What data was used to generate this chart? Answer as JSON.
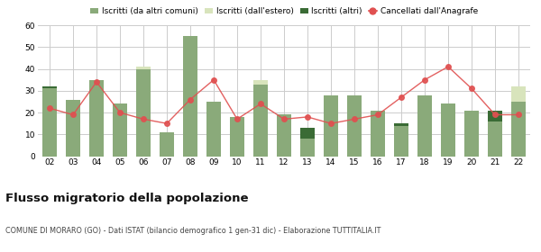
{
  "years": [
    "02",
    "03",
    "04",
    "05",
    "06",
    "07",
    "08",
    "09",
    "10",
    "11",
    "12",
    "13",
    "14",
    "15",
    "16",
    "17",
    "18",
    "19",
    "20",
    "21",
    "22"
  ],
  "iscritti_altri_comuni": [
    31,
    26,
    35,
    24,
    40,
    11,
    55,
    25,
    18,
    33,
    19,
    8,
    28,
    28,
    21,
    14,
    28,
    24,
    21,
    16,
    25
  ],
  "iscritti_estero": [
    0,
    0,
    0,
    0,
    1,
    0,
    0,
    0,
    0,
    2,
    0,
    2,
    0,
    0,
    0,
    0,
    0,
    0,
    0,
    0,
    7
  ],
  "iscritti_altri": [
    1,
    0,
    0,
    0,
    0,
    0,
    0,
    0,
    0,
    0,
    0,
    5,
    0,
    0,
    0,
    1,
    0,
    0,
    0,
    5,
    0
  ],
  "cancellati": [
    22,
    19,
    34,
    20,
    17,
    15,
    26,
    35,
    17,
    24,
    17,
    18,
    15,
    17,
    19,
    27,
    35,
    41,
    31,
    19,
    19
  ],
  "color_altri_comuni": "#8aaa7a",
  "color_estero": "#d8e4bc",
  "color_altri": "#3a6b35",
  "color_cancellati": "#e05050",
  "ylim": [
    0,
    60
  ],
  "yticks": [
    0,
    10,
    20,
    30,
    40,
    50,
    60
  ],
  "title": "Flusso migratorio della popolazione",
  "subtitle": "COMUNE DI MORARO (GO) - Dati ISTAT (bilancio demografico 1 gen-31 dic) - Elaborazione TUTTITALIA.IT",
  "legend_labels": [
    "Iscritti (da altri comuni)",
    "Iscritti (dall'estero)",
    "Iscritti (altri)",
    "Cancellati dall'Anagrafe"
  ],
  "background_color": "#ffffff",
  "grid_color": "#cccccc"
}
